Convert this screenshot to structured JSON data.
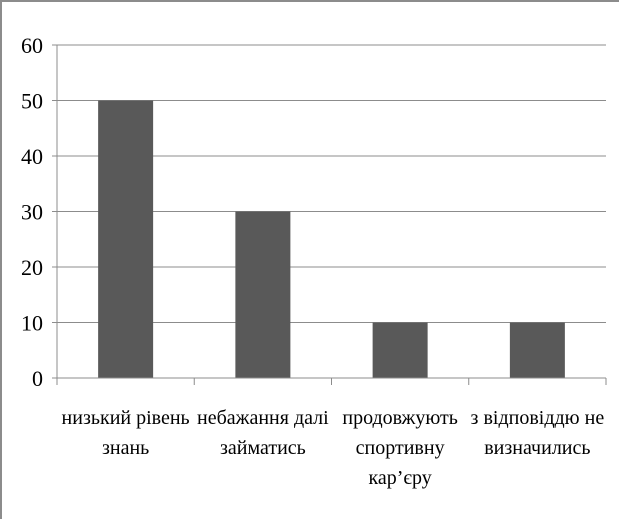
{
  "chart_data": {
    "type": "bar",
    "categories": [
      [
        "низький рівень",
        "знань"
      ],
      [
        "небажання далі",
        "займатись"
      ],
      [
        "продовжують",
        "спортивну",
        "кар’єру"
      ],
      [
        "з відповіддю не",
        "визначились"
      ]
    ],
    "values": [
      50,
      30,
      10,
      10
    ],
    "title": "",
    "xlabel": "",
    "ylabel": "",
    "ylim": [
      0,
      60
    ],
    "yticks": [
      0,
      10,
      20,
      30,
      40,
      50,
      60
    ],
    "grid": true,
    "legend": "none",
    "bar_color": "#595959",
    "grid_color": "#8c8c8c",
    "axis_color": "#8c8c8c"
  }
}
